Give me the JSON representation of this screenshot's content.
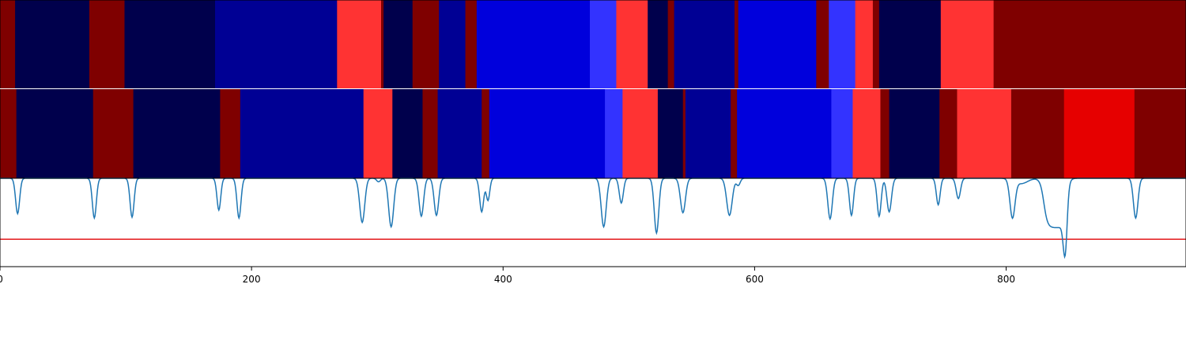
{
  "chart_data": [
    {
      "type": "heatmap",
      "title": "",
      "xlim": [
        0,
        943
      ],
      "segments": [
        {
          "start": 0,
          "end": 12,
          "color": "#7f0000"
        },
        {
          "start": 12,
          "end": 71,
          "color": "#00004c"
        },
        {
          "start": 71,
          "end": 99,
          "color": "#7f0000"
        },
        {
          "start": 99,
          "end": 171,
          "color": "#00004c"
        },
        {
          "start": 171,
          "end": 268,
          "color": "#000094"
        },
        {
          "start": 268,
          "end": 303,
          "color": "#ff3333"
        },
        {
          "start": 303,
          "end": 305,
          "color": "#7f0000"
        },
        {
          "start": 305,
          "end": 328,
          "color": "#00004c"
        },
        {
          "start": 328,
          "end": 349,
          "color": "#7f0000"
        },
        {
          "start": 349,
          "end": 370,
          "color": "#000094"
        },
        {
          "start": 370,
          "end": 379,
          "color": "#7f0000"
        },
        {
          "start": 379,
          "end": 469,
          "color": "#0000dc"
        },
        {
          "start": 469,
          "end": 490,
          "color": "#3333ff"
        },
        {
          "start": 490,
          "end": 515,
          "color": "#ff3333"
        },
        {
          "start": 515,
          "end": 531,
          "color": "#00004c"
        },
        {
          "start": 531,
          "end": 536,
          "color": "#7f0000"
        },
        {
          "start": 536,
          "end": 584,
          "color": "#000094"
        },
        {
          "start": 584,
          "end": 587,
          "color": "#7f0000"
        },
        {
          "start": 587,
          "end": 649,
          "color": "#0000dc"
        },
        {
          "start": 649,
          "end": 659,
          "color": "#7f0000"
        },
        {
          "start": 659,
          "end": 680,
          "color": "#3333ff"
        },
        {
          "start": 680,
          "end": 694,
          "color": "#ff3333"
        },
        {
          "start": 694,
          "end": 699,
          "color": "#7f0000"
        },
        {
          "start": 699,
          "end": 748,
          "color": "#00004c"
        },
        {
          "start": 748,
          "end": 790,
          "color": "#ff3333"
        },
        {
          "start": 790,
          "end": 943,
          "color": "#7f0000"
        }
      ]
    },
    {
      "type": "heatmap",
      "title": "",
      "xlim": [
        0,
        943
      ],
      "segments": [
        {
          "start": 0,
          "end": 13,
          "color": "#7f0000"
        },
        {
          "start": 13,
          "end": 74,
          "color": "#00004c"
        },
        {
          "start": 74,
          "end": 106,
          "color": "#7f0000"
        },
        {
          "start": 106,
          "end": 175,
          "color": "#00004c"
        },
        {
          "start": 175,
          "end": 191,
          "color": "#7f0000"
        },
        {
          "start": 191,
          "end": 289,
          "color": "#000094"
        },
        {
          "start": 289,
          "end": 312,
          "color": "#ff3333"
        },
        {
          "start": 312,
          "end": 336,
          "color": "#00004c"
        },
        {
          "start": 336,
          "end": 348,
          "color": "#7f0000"
        },
        {
          "start": 348,
          "end": 383,
          "color": "#000094"
        },
        {
          "start": 383,
          "end": 389,
          "color": "#7f0000"
        },
        {
          "start": 389,
          "end": 481,
          "color": "#0000dc"
        },
        {
          "start": 481,
          "end": 495,
          "color": "#3333ff"
        },
        {
          "start": 495,
          "end": 523,
          "color": "#ff3333"
        },
        {
          "start": 523,
          "end": 543,
          "color": "#00004c"
        },
        {
          "start": 543,
          "end": 545,
          "color": "#7f0000"
        },
        {
          "start": 545,
          "end": 581,
          "color": "#000094"
        },
        {
          "start": 581,
          "end": 586,
          "color": "#7f0000"
        },
        {
          "start": 586,
          "end": 661,
          "color": "#0000dc"
        },
        {
          "start": 661,
          "end": 678,
          "color": "#3333ff"
        },
        {
          "start": 678,
          "end": 700,
          "color": "#ff3333"
        },
        {
          "start": 700,
          "end": 707,
          "color": "#7f0000"
        },
        {
          "start": 707,
          "end": 747,
          "color": "#00004c"
        },
        {
          "start": 747,
          "end": 761,
          "color": "#7f0000"
        },
        {
          "start": 761,
          "end": 804,
          "color": "#ff3333"
        },
        {
          "start": 804,
          "end": 846,
          "color": "#7f0000"
        },
        {
          "start": 846,
          "end": 902,
          "color": "#e60000"
        },
        {
          "start": 902,
          "end": 943,
          "color": "#7f0000"
        }
      ]
    },
    {
      "type": "line",
      "title": "",
      "xlabel": "",
      "ylabel": "",
      "xlim": [
        0,
        943
      ],
      "ylim": [
        0,
        1
      ],
      "x_ticks": [
        0,
        200,
        400,
        600,
        800
      ],
      "x_tick_labels": [
        "0",
        "200",
        "400",
        "600",
        "800"
      ],
      "grid": false,
      "baseline": 1.0,
      "threshold": 0.31,
      "series": [
        {
          "color": "#1f77b4",
          "dips": [
            {
              "x": 14,
              "depth": 0.4,
              "width": 1.6
            },
            {
              "x": 75,
              "depth": 0.45,
              "width": 1.6
            },
            {
              "x": 105,
              "depth": 0.44,
              "width": 1.6
            },
            {
              "x": 174,
              "depth": 0.36,
              "width": 1.5
            },
            {
              "x": 190,
              "depth": 0.45,
              "width": 1.6
            },
            {
              "x": 288,
              "depth": 0.5,
              "width": 2.0
            },
            {
              "x": 301,
              "depth": 0.04,
              "width": 1.5
            },
            {
              "x": 311,
              "depth": 0.55,
              "width": 2.0
            },
            {
              "x": 335,
              "depth": 0.43,
              "width": 1.8
            },
            {
              "x": 347,
              "depth": 0.42,
              "width": 1.8
            },
            {
              "x": 383,
              "depth": 0.38,
              "width": 1.6
            },
            {
              "x": 388,
              "depth": 0.25,
              "width": 1.4
            },
            {
              "x": 480,
              "depth": 0.55,
              "width": 2.0
            },
            {
              "x": 494,
              "depth": 0.28,
              "width": 1.6
            },
            {
              "x": 522,
              "depth": 0.62,
              "width": 1.8
            },
            {
              "x": 543,
              "depth": 0.39,
              "width": 2.0
            },
            {
              "x": 580,
              "depth": 0.42,
              "width": 2.2
            },
            {
              "x": 587,
              "depth": 0.08,
              "width": 1.5
            },
            {
              "x": 660,
              "depth": 0.46,
              "width": 1.8
            },
            {
              "x": 677,
              "depth": 0.42,
              "width": 1.6
            },
            {
              "x": 699,
              "depth": 0.43,
              "width": 1.6
            },
            {
              "x": 707,
              "depth": 0.38,
              "width": 1.8
            },
            {
              "x": 746,
              "depth": 0.3,
              "width": 1.5
            },
            {
              "x": 762,
              "depth": 0.23,
              "width": 1.7
            },
            {
              "x": 805,
              "depth": 0.43,
              "width": 2.0
            },
            {
              "x": 847,
              "depth": 0.48,
              "width": 1.5
            },
            {
              "x": 903,
              "depth": 0.45,
              "width": 1.8
            }
          ],
          "plateau": {
            "from": 830,
            "to": 848,
            "depth": 0.56
          }
        },
        {
          "name": "",
          "color": "#e31a1c",
          "type": "hline"
        }
      ]
    }
  ],
  "colors": {
    "frame": "#000000",
    "separator": "#ffffff",
    "background": "#ffffff"
  }
}
